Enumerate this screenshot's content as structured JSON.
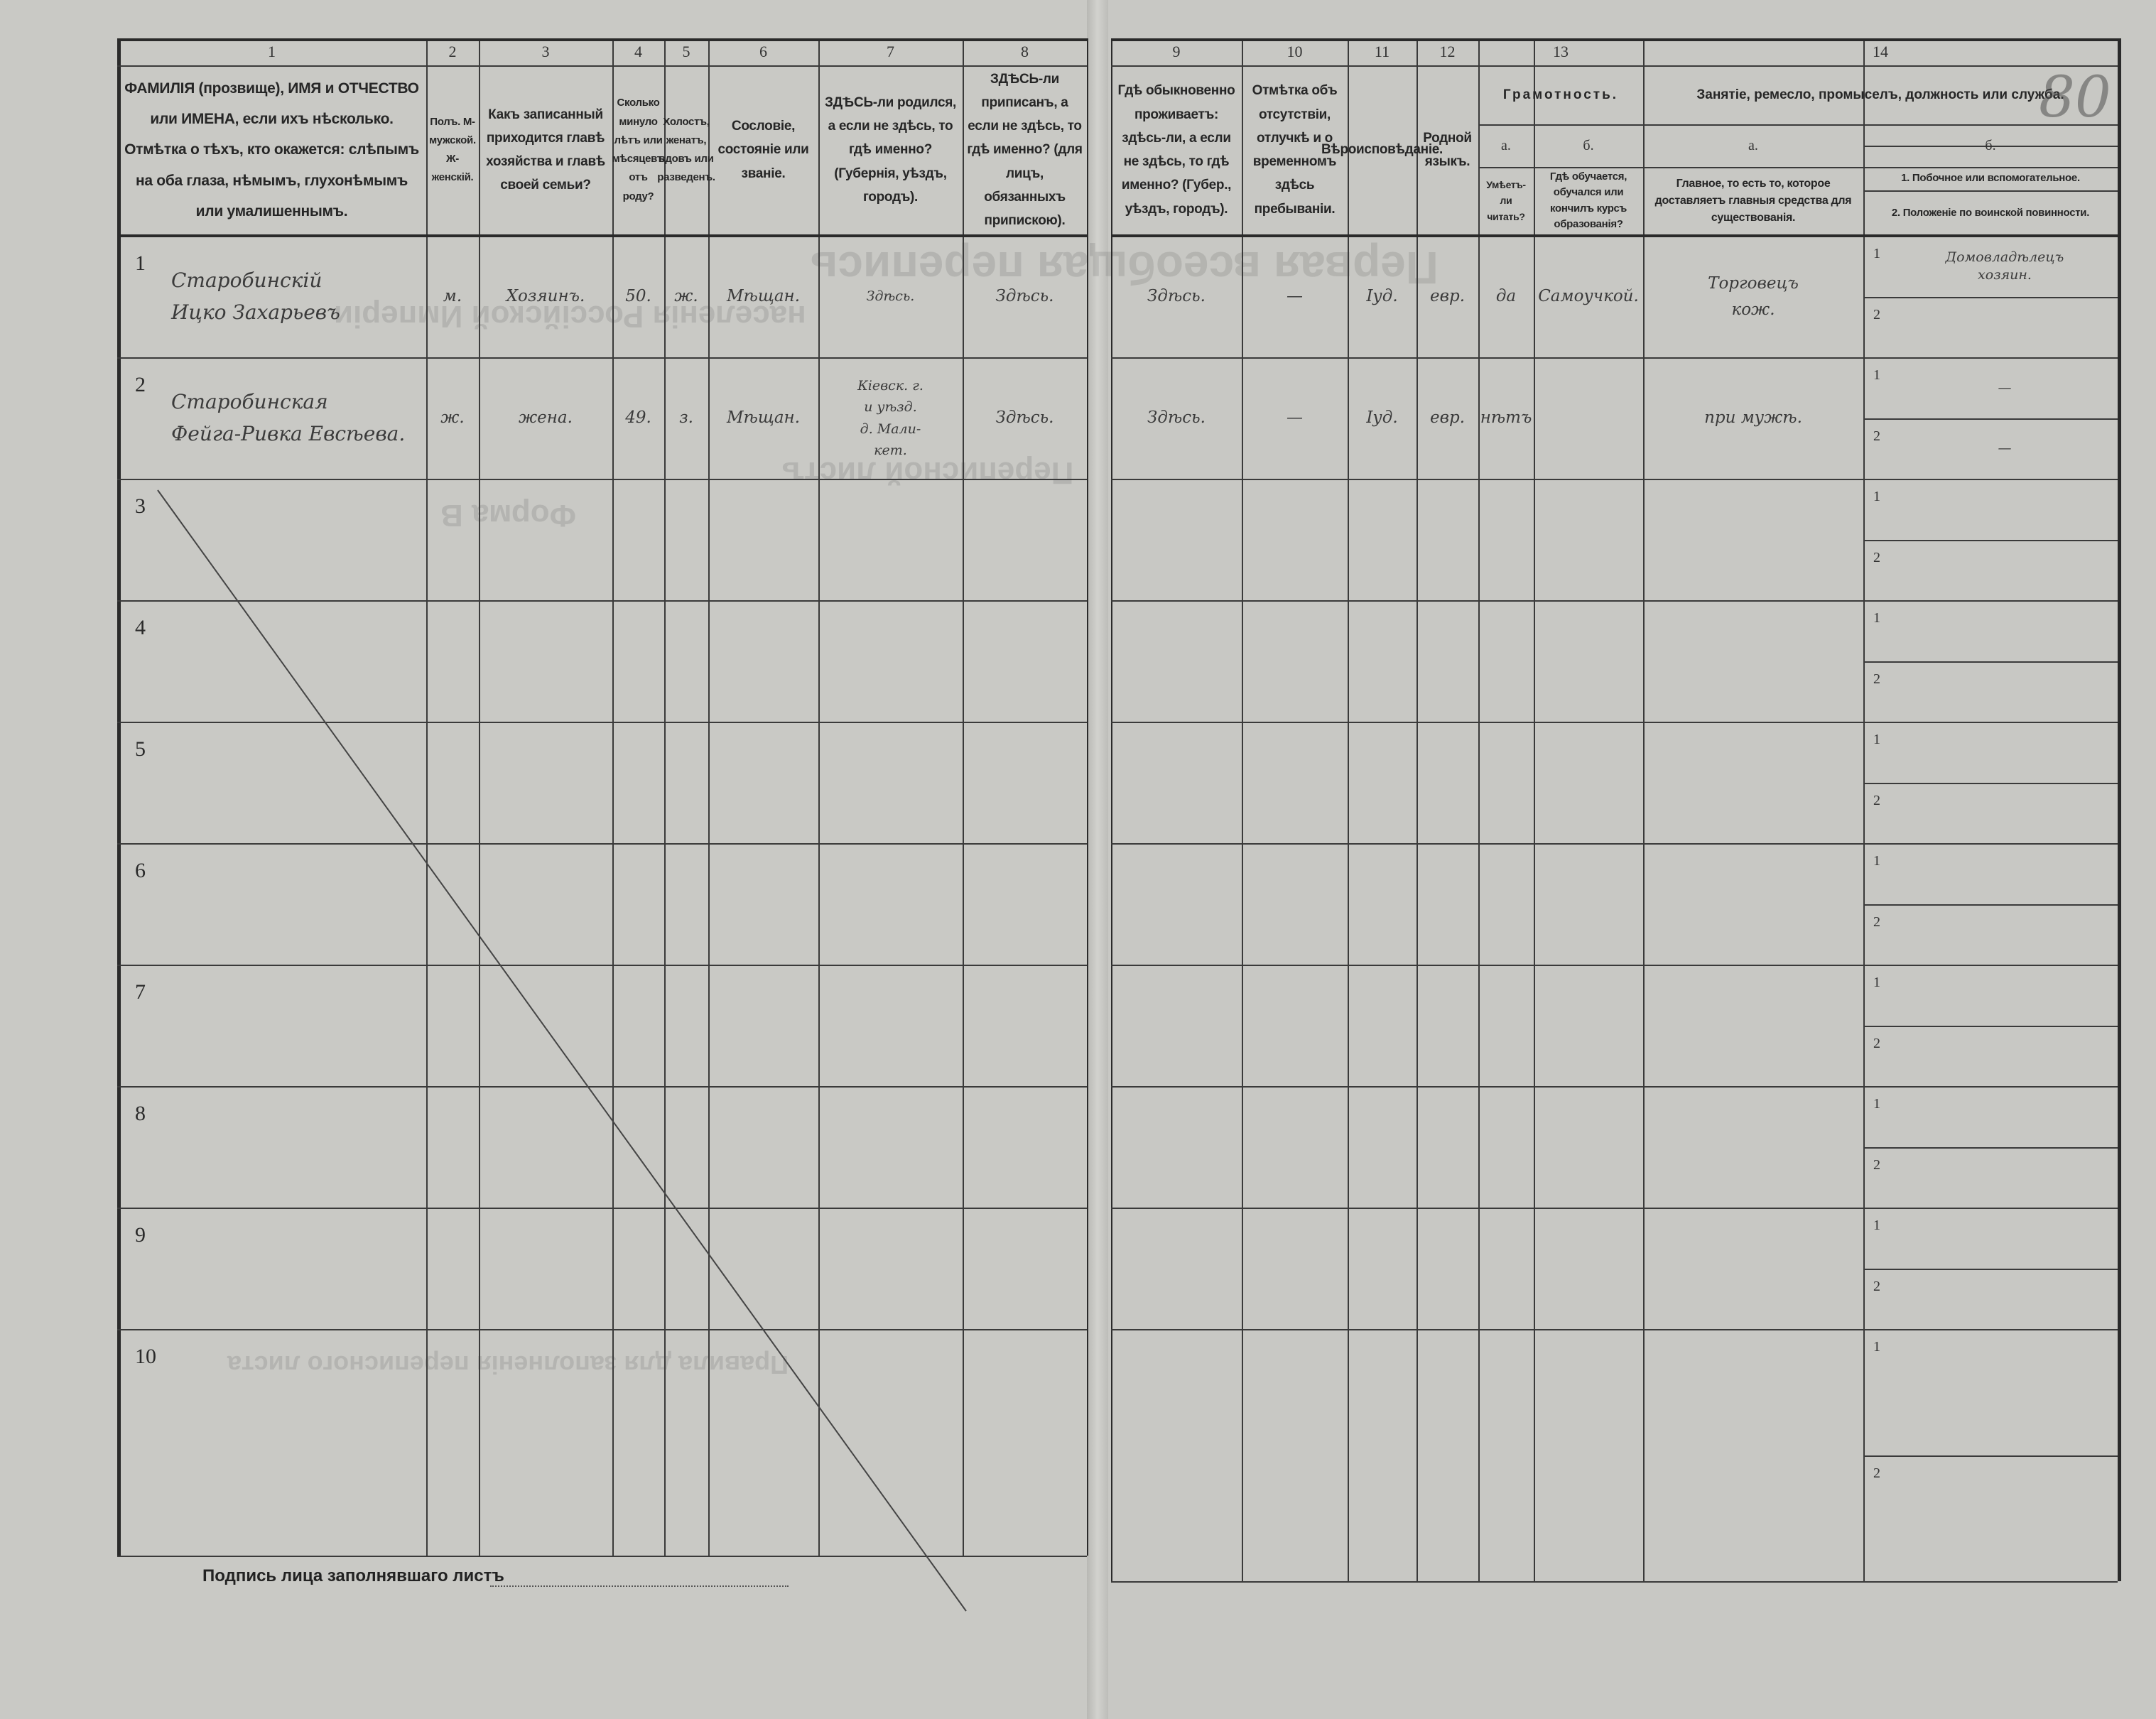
{
  "form": {
    "stamp_number": "80",
    "signature_label": "Подпись лица заполнявшаго листъ",
    "background_print": [
      "Первая всеобщая перепись",
      "населенія Россійской Имперіи",
      "Переписной листъ",
      "Форма В",
      "Правила для заполненія переписного листа"
    ]
  },
  "columns": {
    "c1": {
      "num": "1",
      "text": "ФАМИЛІЯ (прозвище), ИМЯ и ОТЧЕСТВО или ИМЕНА, если ихъ нѣсколько. Отмѣтка о тѣхъ, кто окажется: слѣпымъ на оба глаза, нѣмымъ, глухонѣмымъ или умалишеннымъ."
    },
    "c2": {
      "num": "2",
      "text": "Полъ. М-мужской. Ж-женскій."
    },
    "c3": {
      "num": "3",
      "text": "Какъ записанный приходится главѣ хозяйства и главѣ своей семьи?"
    },
    "c4": {
      "num": "4",
      "text": "Сколько минуло лѣтъ или мѣсяцевъ отъ роду?"
    },
    "c5": {
      "num": "5",
      "text": "Холостъ, женатъ, вдовъ или разведенъ."
    },
    "c6": {
      "num": "6",
      "text": "Сословіе, состояніе или званіе."
    },
    "c7": {
      "num": "7",
      "text": "ЗДѢСЬ-ли родился, а если не здѣсь, то гдѣ именно? (Губернія, уѣздъ, городъ)."
    },
    "c8": {
      "num": "8",
      "text": "ЗДѢСЬ-ли приписанъ, а если не здѣсь, то гдѣ именно? (для лицъ, обязанныхъ припискою)."
    },
    "c9": {
      "num": "9",
      "text": "Гдѣ обыкновенно проживаетъ: здѣсь-ли, а если не здѣсь, то гдѣ именно? (Губер., уѣздъ, городъ)."
    },
    "c10": {
      "num": "10",
      "text": "Отмѣтка объ отсутствіи, отлучкѣ и о временномъ здѣсь пребываніи."
    },
    "c11": {
      "num": "11",
      "text": "Вѣроисповѣданіе."
    },
    "c12": {
      "num": "12",
      "text": "Родной языкъ."
    },
    "c13": {
      "num": "13",
      "title": "Грамотность.",
      "a_label": "а.",
      "a_text": "Умѣетъ-ли читать?",
      "b_label": "б.",
      "b_text": "Гдѣ обучается, обучался или кончилъ курсъ образованія?"
    },
    "c14": {
      "num": "14",
      "title": "Занятіе, ремесло, промыселъ, должность или служба.",
      "a_label": "а.",
      "a_text": "Главное, то есть то, которое доставляетъ главныя средства для существованія.",
      "b_label": "б.",
      "b_text1": "1. Побочное или вспомогательное.",
      "b_text2": "2. Положеніе по воинской повинности."
    }
  },
  "rows": [
    {
      "n": "1",
      "name": "Старобинскій\nИцко Захарьевъ",
      "sex": "м.",
      "relation": "Хозяинъ.",
      "age": "50.",
      "marital": "ж.",
      "estate": "Мѣщан.",
      "born": "Здѣсь.",
      "registered": "Здѣсь.",
      "residence": "Здѣсь.",
      "absence": "—",
      "religion": "Іуд.",
      "language": "евр.",
      "reads": "да",
      "education": "Самоучкой.",
      "occupation": "Торговецъ\nкож.",
      "side1": "Домовладѣлецъ\nхозяин.",
      "side2": ""
    },
    {
      "n": "2",
      "name": "Старобинская\nФейга-Ривка Евсѣева.",
      "sex": "ж.",
      "relation": "жена.",
      "age": "49.",
      "marital": "з.",
      "estate": "Мѣщан.",
      "born": "Кіевск. г.\nи уѣзд.\nд. Мали-\nкет.",
      "registered": "Здѣсь.",
      "residence": "Здѣсь.",
      "absence": "—",
      "religion": "Іуд.",
      "language": "евр.",
      "reads": "нѣтъ",
      "education": "",
      "occupation": "при мужѣ.",
      "side1": "—",
      "side2": "—"
    },
    {
      "n": "3"
    },
    {
      "n": "4"
    },
    {
      "n": "5"
    },
    {
      "n": "6"
    },
    {
      "n": "7"
    },
    {
      "n": "8"
    },
    {
      "n": "9"
    },
    {
      "n": "10"
    }
  ],
  "sub_labels": {
    "one": "1",
    "two": "2"
  }
}
